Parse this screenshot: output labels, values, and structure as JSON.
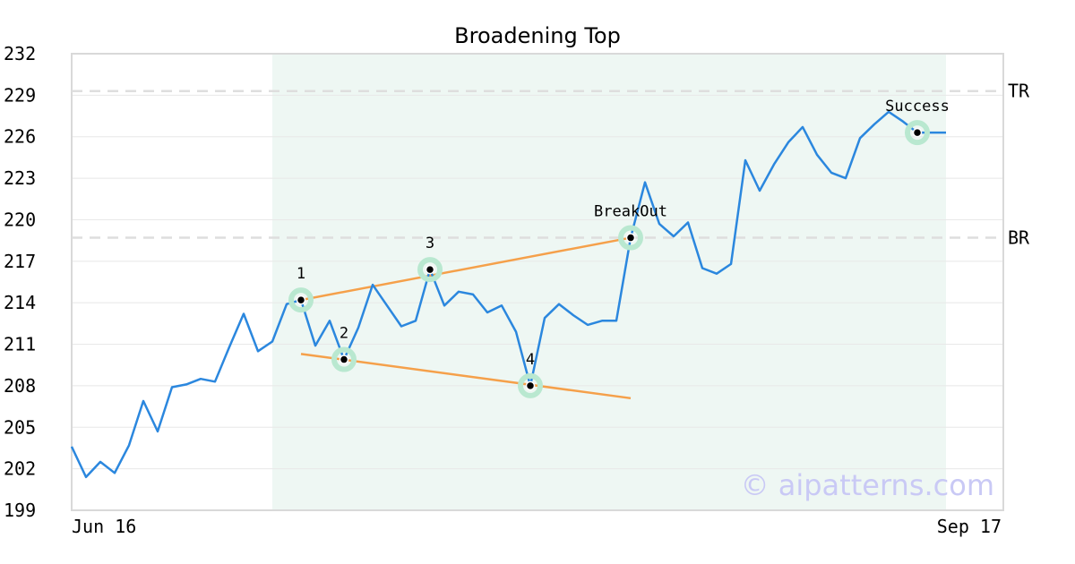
{
  "chart_data": {
    "type": "line",
    "title": "Broadening Top",
    "watermark": "© aipatterns.com",
    "ylim": [
      199,
      232
    ],
    "yticks": [
      199,
      202,
      205,
      208,
      211,
      214,
      217,
      220,
      223,
      226,
      229,
      232
    ],
    "xlim": [
      0,
      61
    ],
    "xtick_labels": [
      {
        "label": "Jun 16",
        "x": 0
      },
      {
        "label": "Sep 17",
        "x": 61
      }
    ],
    "grid": true,
    "pattern_shading": {
      "x_start": 14,
      "x_end": 61,
      "color": "#eef7f3"
    },
    "line_color": "#2b87de",
    "trendline_color": "#f5a04a",
    "marker_ring_color": "#b9e8d0",
    "series": [
      {
        "values": [
          203.6,
          201.4,
          202.5,
          201.7,
          203.7,
          206.9,
          204.7,
          207.9,
          208.1,
          208.5,
          208.3,
          210.8,
          213.2,
          210.5,
          211.2,
          213.9,
          214.2,
          210.9,
          212.7,
          209.9,
          212.2,
          215.3,
          213.8,
          212.3,
          212.7,
          216.4,
          213.8,
          214.8,
          214.6,
          213.3,
          213.8,
          211.9,
          208.0,
          212.9,
          213.9,
          213.1,
          212.4,
          212.7,
          212.7,
          218.7,
          222.7,
          219.7,
          218.8,
          219.8,
          216.5,
          216.1,
          216.8,
          224.3,
          222.1,
          224.0,
          225.6,
          226.7,
          224.7,
          223.4,
          223.0,
          225.9,
          226.9,
          227.8,
          227.1,
          226.3,
          226.3,
          226.3
        ]
      }
    ],
    "levels": [
      {
        "label": "TR",
        "value": 229.3
      },
      {
        "label": "BR",
        "value": 218.7
      }
    ],
    "trendlines": [
      {
        "x1": 16,
        "y1": 214.2,
        "x2": 39,
        "y2": 218.7
      },
      {
        "x1": 16,
        "y1": 210.3,
        "x2": 39,
        "y2": 207.1
      }
    ],
    "annotations": [
      {
        "label": "1",
        "x": 16,
        "y": 214.2
      },
      {
        "label": "2",
        "x": 19,
        "y": 209.9
      },
      {
        "label": "3",
        "x": 25,
        "y": 216.4
      },
      {
        "label": "4",
        "x": 32,
        "y": 208.0
      },
      {
        "label": "BreakOut",
        "x": 39,
        "y": 218.7
      },
      {
        "label": "Success",
        "x": 59,
        "y": 226.3
      }
    ]
  }
}
